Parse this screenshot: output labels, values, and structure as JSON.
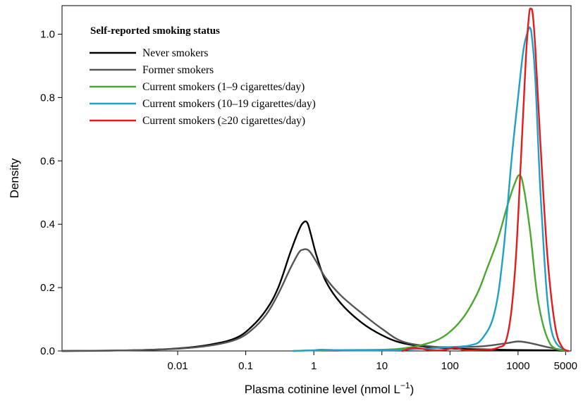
{
  "chart_data": {
    "type": "line",
    "xlabel": "Plasma cotinine level (nmol L",
    "xlabel_sup": "−1",
    "xlabel_close": ")",
    "ylabel": "Density",
    "xscale": "log",
    "xlim": [
      0.0002,
      6000
    ],
    "ylim": [
      0,
      1.09
    ],
    "x_ticks": [
      0.01,
      0.1,
      1,
      10,
      100,
      1000,
      5000
    ],
    "x_tick_labels": [
      "0.01",
      "0.1",
      "1",
      "10",
      "100",
      "1000",
      "5000"
    ],
    "y_ticks": [
      0,
      0.2,
      0.4,
      0.6,
      0.8,
      1.0
    ],
    "y_tick_labels": [
      "0.0",
      "0.2",
      "0.4",
      "0.6",
      "0.8",
      "1.0"
    ],
    "grid": false,
    "legend": {
      "title": "Self-reported smoking status",
      "placement": "top-left"
    },
    "series": [
      {
        "name": "Never smokers",
        "color": "#000000",
        "x": [
          0.0002,
          0.002,
          0.01,
          0.03,
          0.07,
          0.12,
          0.2,
          0.3,
          0.45,
          0.6,
          0.7,
          0.8,
          0.9,
          1.1,
          1.5,
          2.5,
          5,
          10,
          20,
          50,
          100,
          300,
          1000,
          3000,
          5500
        ],
        "y": [
          0,
          0.002,
          0.008,
          0.02,
          0.04,
          0.075,
          0.13,
          0.2,
          0.31,
          0.38,
          0.405,
          0.405,
          0.37,
          0.3,
          0.22,
          0.15,
          0.09,
          0.05,
          0.025,
          0.012,
          0.008,
          0.005,
          0.003,
          0.002,
          0
        ]
      },
      {
        "name": "Former smokers",
        "color": "#555555",
        "x": [
          0.0002,
          0.002,
          0.01,
          0.03,
          0.07,
          0.12,
          0.2,
          0.3,
          0.45,
          0.6,
          0.7,
          0.8,
          0.9,
          1.1,
          1.5,
          2.5,
          5,
          10,
          20,
          50,
          100,
          300,
          700,
          1000,
          1500,
          3000,
          5500
        ],
        "y": [
          0,
          0.002,
          0.007,
          0.017,
          0.035,
          0.065,
          0.115,
          0.18,
          0.26,
          0.31,
          0.32,
          0.32,
          0.31,
          0.28,
          0.23,
          0.175,
          0.12,
          0.07,
          0.03,
          0.015,
          0.012,
          0.015,
          0.025,
          0.03,
          0.025,
          0.01,
          0
        ]
      },
      {
        "name": "Current smokers (1–9 cigarettes/day)",
        "color": "#4aa830",
        "x": [
          0.5,
          1,
          3,
          10,
          20,
          40,
          80,
          150,
          250,
          350,
          500,
          700,
          900,
          1050,
          1200,
          1500,
          2000,
          3000,
          5000
        ],
        "y": [
          0,
          0.002,
          0.003,
          0.004,
          0.008,
          0.02,
          0.045,
          0.1,
          0.18,
          0.26,
          0.35,
          0.46,
          0.53,
          0.555,
          0.52,
          0.38,
          0.15,
          0.02,
          0
        ]
      },
      {
        "name": "Current smokers (10–19 cigarettes/day)",
        "color": "#1ea0c8",
        "x": [
          0.5,
          1,
          1.3,
          3,
          10,
          20,
          30,
          50,
          100,
          200,
          300,
          450,
          600,
          800,
          1000,
          1200,
          1400,
          1500,
          1600,
          1800,
          2200,
          3000,
          5000
        ],
        "y": [
          0,
          0.002,
          0.004,
          0.002,
          0.002,
          0.003,
          0.006,
          0.008,
          0.012,
          0.018,
          0.04,
          0.12,
          0.3,
          0.6,
          0.8,
          0.95,
          1.01,
          1.02,
          0.99,
          0.85,
          0.45,
          0.08,
          0
        ]
      },
      {
        "name": "Current smokers (≥20 cigarettes/day)",
        "color": "#e41a1c",
        "x": [
          20,
          30,
          50,
          80,
          120,
          160,
          250,
          500,
          700,
          900,
          1100,
          1300,
          1450,
          1550,
          1650,
          1800,
          2100,
          2700,
          3500,
          4500,
          5500
        ],
        "y": [
          0,
          0.01,
          0.003,
          0.003,
          0.01,
          0.003,
          0.003,
          0.01,
          0.05,
          0.25,
          0.6,
          0.92,
          1.06,
          1.08,
          1.06,
          0.95,
          0.68,
          0.3,
          0.08,
          0.01,
          0
        ]
      }
    ]
  }
}
